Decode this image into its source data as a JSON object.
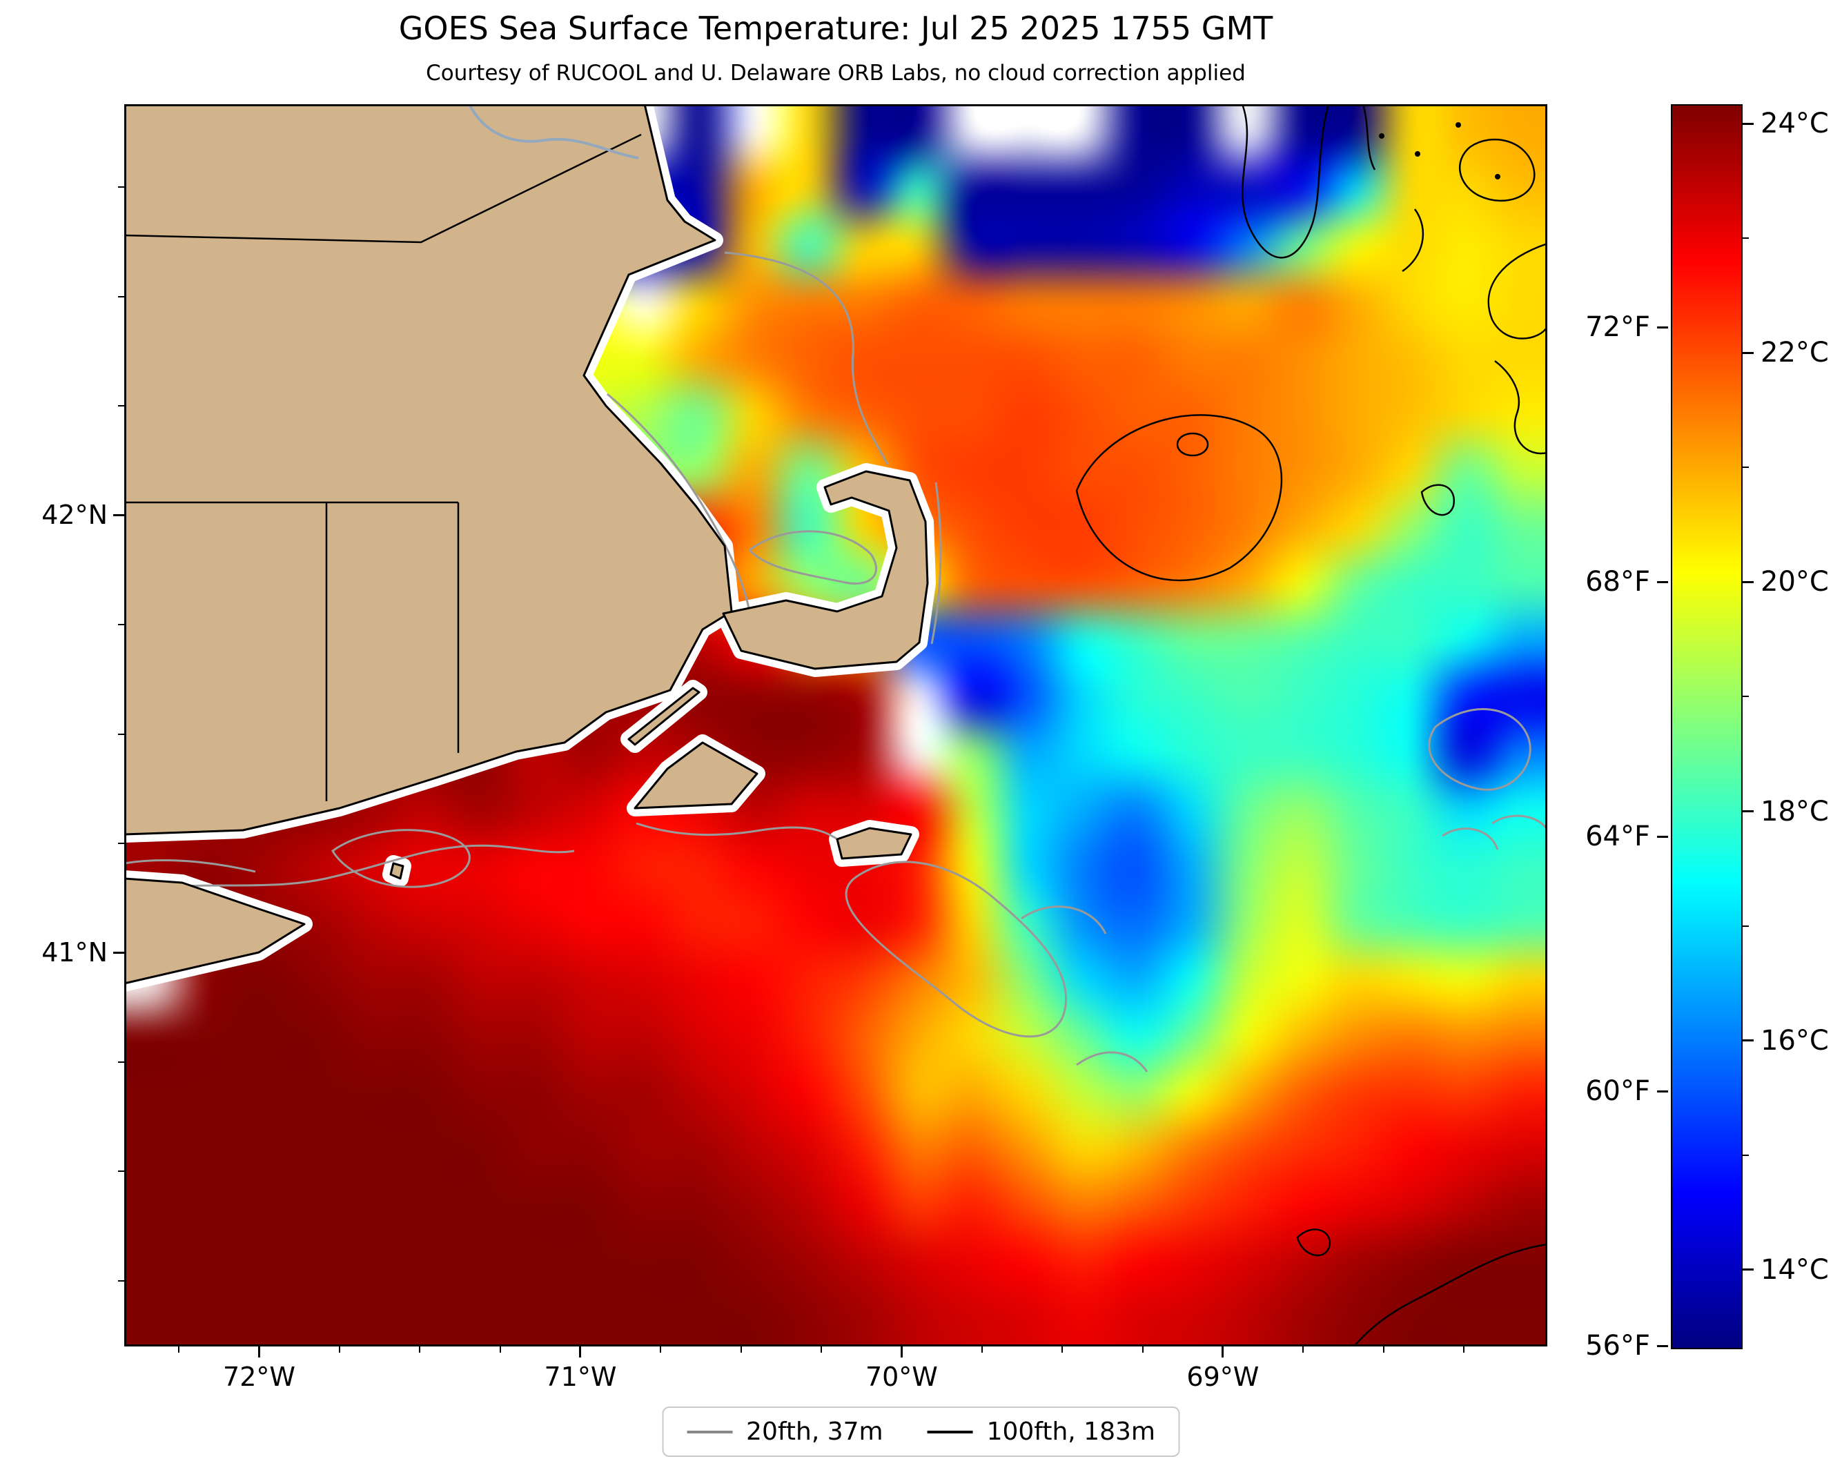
{
  "title": "GOES Sea Surface Temperature: Jul 25 2025 1755 GMT",
  "subtitle": "Courtesy of RUCOOL and U. Delaware ORB Labs, no cloud correction applied",
  "axes": {
    "x_ticks": [
      {
        "lon": -72,
        "label": "72°W"
      },
      {
        "lon": -71,
        "label": "71°W"
      },
      {
        "lon": -70,
        "label": "70°W"
      },
      {
        "lon": -69,
        "label": "69°W"
      }
    ],
    "y_ticks": [
      {
        "lat": 42,
        "label": "42°N"
      },
      {
        "lat": 41,
        "label": "41°N"
      }
    ]
  },
  "colorbar": {
    "vmin_c": 13.33,
    "vmax_c": 24.17,
    "ticks_c": [
      {
        "value": 24,
        "label": "24°C"
      },
      {
        "value": 22,
        "label": "22°C"
      },
      {
        "value": 20,
        "label": "20°C"
      },
      {
        "value": 18,
        "label": "18°C"
      },
      {
        "value": 16,
        "label": "16°C"
      },
      {
        "value": 14,
        "label": "14°C"
      }
    ],
    "ticks_f": [
      {
        "value_f": 72,
        "label": "72°F"
      },
      {
        "value_f": 68,
        "label": "68°F"
      },
      {
        "value_f": 64,
        "label": "64°F"
      },
      {
        "value_f": 60,
        "label": "60°F"
      },
      {
        "value_f": 56,
        "label": "56°F"
      }
    ]
  },
  "legend": [
    {
      "label": "20fth, 37m",
      "color": "#888888"
    },
    {
      "label": "100fth, 183m",
      "color": "#000000"
    }
  ],
  "chart_data": {
    "type": "heatmap",
    "units": "°C",
    "colormap": "jet",
    "land_color": "#d2b48c",
    "cloud_color": "#ffffff",
    "no_data_value": -1,
    "land_value": null,
    "lon_range": [
      -72.42,
      -67.99
    ],
    "lat_range": [
      40.1,
      42.94
    ],
    "grid_cols": 26,
    "grid_rows": 22,
    "values_c": [
      [
        null,
        null,
        null,
        null,
        null,
        null,
        null,
        null,
        null,
        -1,
        13.5,
        -1,
        20.5,
        13.5,
        13.5,
        -1,
        -1,
        -1,
        13.5,
        13.5,
        -1,
        13.5,
        13.5,
        20.5,
        20.8,
        21
      ],
      [
        null,
        null,
        null,
        null,
        null,
        null,
        null,
        null,
        null,
        13.8,
        13.8,
        21,
        20.5,
        14,
        18,
        13.6,
        13.6,
        13.6,
        13.6,
        14,
        14,
        14.5,
        17,
        20.5,
        20.5,
        20.8
      ],
      [
        null,
        null,
        null,
        null,
        null,
        null,
        null,
        null,
        null,
        null,
        14,
        20.8,
        18,
        20.5,
        20.5,
        13.8,
        13.8,
        13.8,
        14,
        14.5,
        16,
        18.5,
        20,
        20.5,
        20.3,
        20.5
      ],
      [
        null,
        null,
        null,
        null,
        null,
        null,
        null,
        null,
        null,
        -1,
        20.5,
        21.3,
        21.5,
        21.5,
        21.8,
        21.8,
        21.5,
        21.5,
        21.5,
        21.3,
        21,
        21.5,
        21,
        20.5,
        20.3,
        20.5
      ],
      [
        null,
        null,
        null,
        null,
        null,
        null,
        null,
        null,
        null,
        20,
        21,
        21.5,
        21.8,
        22,
        22,
        22,
        22,
        21.8,
        21.8,
        21.5,
        21.5,
        21.3,
        21,
        20.8,
        20.5,
        20.5
      ],
      [
        null,
        null,
        null,
        null,
        null,
        null,
        null,
        null,
        null,
        null,
        18.5,
        20.5,
        21.5,
        21.8,
        22,
        22,
        22.2,
        22,
        21.8,
        21.8,
        21.5,
        21.3,
        21,
        20.8,
        20.5,
        20.3
      ],
      [
        null,
        null,
        null,
        null,
        null,
        null,
        null,
        null,
        null,
        null,
        19,
        21,
        18.5,
        null,
        22,
        22.2,
        22.2,
        22,
        22,
        21.8,
        21.5,
        21.3,
        21,
        20.5,
        18.5,
        19.5
      ],
      [
        null,
        null,
        null,
        null,
        null,
        null,
        null,
        null,
        null,
        null,
        22.5,
        21.5,
        18,
        20.5,
        null,
        22,
        22.2,
        22.2,
        22,
        21.8,
        21.5,
        21,
        20.5,
        19,
        18,
        18.5
      ],
      [
        null,
        null,
        null,
        null,
        null,
        null,
        null,
        null,
        null,
        null,
        22,
        21,
        19,
        18.5,
        null,
        21.8,
        22,
        22,
        21.8,
        21.5,
        21,
        20,
        18.5,
        18,
        18,
        18.2
      ],
      [
        null,
        null,
        null,
        null,
        null,
        null,
        null,
        null,
        null,
        null,
        23.5,
        null,
        null,
        null,
        null,
        15.5,
        16,
        17.5,
        18,
        18.5,
        18.5,
        18.3,
        18,
        18,
        17.5,
        16.5
      ],
      [
        null,
        null,
        null,
        null,
        null,
        null,
        null,
        null,
        null,
        23.8,
        24,
        24,
        24,
        23.8,
        -1,
        14.5,
        15.5,
        17,
        17.8,
        18,
        18.2,
        18,
        17.8,
        17.5,
        15,
        14.5
      ],
      [
        null,
        null,
        null,
        null,
        23.5,
        24,
        24,
        23.5,
        23.8,
        null,
        null,
        24,
        24,
        23.8,
        -1,
        19,
        16.5,
        17,
        17.5,
        17.8,
        18,
        18,
        17.8,
        17.5,
        14.3,
        16
      ],
      [
        null,
        23.8,
        24,
        24,
        23.8,
        23.5,
        23.8,
        23.5,
        23.2,
        22.8,
        23,
        23.5,
        23.2,
        null,
        22.8,
        19.5,
        17,
        16.5,
        16,
        17,
        18.5,
        19,
        18.3,
        18,
        17,
        17.5
      ],
      [
        23.8,
        24,
        23.8,
        23.5,
        23.2,
        23,
        23,
        22.8,
        22.8,
        22.5,
        22.5,
        22.8,
        23,
        23,
        22.5,
        20,
        17,
        16,
        15.5,
        16.5,
        18.8,
        19.5,
        18.5,
        18,
        17.8,
        18
      ],
      [
        null,
        null,
        null,
        23.8,
        23.5,
        23.3,
        23.2,
        23,
        22.8,
        22.8,
        22.5,
        22.5,
        22.8,
        23,
        22.5,
        20.5,
        18,
        16.2,
        15.8,
        16.5,
        19,
        19.8,
        18.5,
        18.2,
        18,
        18.2
      ],
      [
        -1,
        24,
        24.2,
        24,
        23.8,
        23.8,
        23.5,
        23.5,
        23.3,
        23.2,
        23,
        22.8,
        22.5,
        22.2,
        21.5,
        20.8,
        18.8,
        17,
        16.5,
        17.5,
        19.5,
        20,
        20.5,
        20.3,
        20,
        20.5
      ],
      [
        24.3,
        24.3,
        24.2,
        24.2,
        24,
        24,
        23.8,
        23.8,
        23.5,
        23.5,
        23.2,
        23,
        22.5,
        21.8,
        21,
        20.5,
        19.5,
        18.5,
        17.5,
        18.5,
        20,
        20.8,
        21.3,
        21.5,
        21.3,
        21.5
      ],
      [
        24.4,
        24.4,
        24.3,
        24.3,
        24.2,
        24.2,
        24,
        24,
        23.8,
        23.8,
        23.5,
        23.2,
        22.8,
        22,
        20.8,
        21,
        20.5,
        19.5,
        19,
        20,
        21,
        21.8,
        22.2,
        22.3,
        22.2,
        22.5
      ],
      [
        24.5,
        24.5,
        24.4,
        24.4,
        24.3,
        24.2,
        24.2,
        24,
        24,
        23.8,
        23.8,
        23.5,
        23.2,
        22.5,
        21.5,
        21.8,
        21.2,
        20.5,
        20.8,
        21.5,
        22,
        22.3,
        22.5,
        22.8,
        23,
        23.2
      ],
      [
        24.5,
        24.5,
        24.5,
        24.4,
        24.4,
        24.3,
        24.3,
        24.2,
        24.2,
        24,
        24,
        23.8,
        23.5,
        23,
        22.2,
        22.5,
        22,
        21.5,
        21.8,
        22.2,
        22.5,
        22.8,
        23,
        23.2,
        23.5,
        23.8
      ],
      [
        24.5,
        24.5,
        24.5,
        24.5,
        24.4,
        24.4,
        24.3,
        24.3,
        24.3,
        24.2,
        24.2,
        24,
        23.8,
        23.5,
        23.2,
        23,
        22.8,
        22.5,
        22.8,
        23,
        23.2,
        23.5,
        23.8,
        24,
        24.2,
        24.3
      ],
      [
        24.5,
        24.5,
        24.5,
        24.5,
        24.5,
        24.5,
        24.4,
        24.4,
        24.4,
        24.3,
        24.3,
        24.2,
        24,
        23.8,
        23.5,
        23.3,
        23.2,
        23,
        23.2,
        23.3,
        23.5,
        23.8,
        24,
        24.2,
        24.3,
        24.4
      ]
    ]
  }
}
